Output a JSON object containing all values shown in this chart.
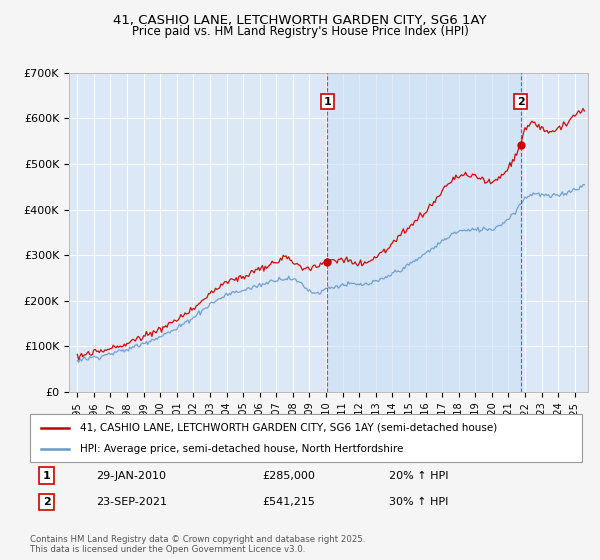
{
  "title": "41, CASHIO LANE, LETCHWORTH GARDEN CITY, SG6 1AY",
  "subtitle": "Price paid vs. HM Land Registry's House Price Index (HPI)",
  "footer": "Contains HM Land Registry data © Crown copyright and database right 2025.\nThis data is licensed under the Open Government Licence v3.0.",
  "legend_line1": "41, CASHIO LANE, LETCHWORTH GARDEN CITY, SG6 1AY (semi-detached house)",
  "legend_line2": "HPI: Average price, semi-detached house, North Hertfordshire",
  "annotation1": {
    "label": "1",
    "date_str": "29-JAN-2010",
    "price_str": "£285,000",
    "hpi_str": "20% ↑ HPI",
    "x_year": 2010.08,
    "y_val": 285000
  },
  "annotation2": {
    "label": "2",
    "date_str": "23-SEP-2021",
    "price_str": "£541,215",
    "hpi_str": "30% ↑ HPI",
    "x_year": 2021.73,
    "y_val": 541215
  },
  "ylim": [
    0,
    700000
  ],
  "yticks": [
    0,
    100000,
    200000,
    300000,
    400000,
    500000,
    600000,
    700000
  ],
  "ytick_labels": [
    "£0",
    "£100K",
    "£200K",
    "£300K",
    "£400K",
    "£500K",
    "£600K",
    "£700K"
  ],
  "xlim": [
    1994.5,
    2025.8
  ],
  "plot_bg_color": "#dce8f5",
  "red_color": "#cc0000",
  "blue_color": "#6699cc",
  "fill_between_color": "#ddeeff",
  "grid_color": "#ffffff",
  "vline_color": "#cc0000",
  "fig_bg": "#f5f5f5"
}
